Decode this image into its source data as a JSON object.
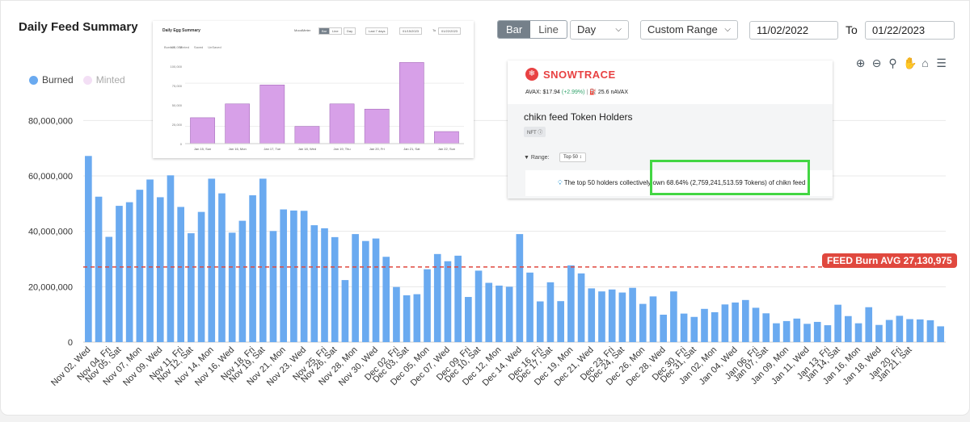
{
  "header": {
    "title": "Daily Feed Summary",
    "toggle_bar": "Bar",
    "toggle_line": "Line",
    "granularity": "Day",
    "range_mode": "Custom Range",
    "date_from": "11/02/2022",
    "to_label": "To",
    "date_to": "01/22/2023"
  },
  "legend": [
    {
      "name": "Burned",
      "color": "#6aaaf0"
    },
    {
      "name": "Minted",
      "color": "#f3dff5"
    }
  ],
  "toolbar_icons": [
    "zoom-in-icon",
    "zoom-out-icon",
    "magnify-icon",
    "pan-hand-icon",
    "home-icon",
    "menu-icon"
  ],
  "average_line": {
    "label": "FEED Burn AVG 27,130,975",
    "value": 27130975,
    "color": "#e0483e"
  },
  "chart_data": {
    "type": "bar",
    "title": "Daily Feed Summary",
    "ylim": [
      0,
      90000000
    ],
    "yticks": [
      "0",
      "20,000,000",
      "40,000,000",
      "60,000,000",
      "80,000,000"
    ],
    "ytick_values": [
      0,
      20000000,
      40000000,
      60000000,
      80000000
    ],
    "grid": true,
    "legend_position": "top-left",
    "bar_color": "#6aaaf0",
    "xtick_labels": [
      "Nov 02, Wed",
      "Nov 04, Fri",
      "Nov 05, Sat",
      "Nov 07, Mon",
      "Nov 09, Wed",
      "Nov 11, Fri",
      "Nov 12, Sat",
      "Nov 14, Mon",
      "Nov 16, Wed",
      "Nov 18, Fri",
      "Nov 19, Sat",
      "Nov 21, Mon",
      "Nov 23, Wed",
      "Nov 25, Fri",
      "Nov 26, Sat",
      "Nov 28, Mon",
      "Nov 30, Wed",
      "Dec 02, Fri",
      "Dec 03, Sat",
      "Dec 05, Mon",
      "Dec 07, Wed",
      "Dec 09, Fri",
      "Dec 10, Sat",
      "Dec 12, Mon",
      "Dec 14, Wed",
      "Dec 16, Fri",
      "Dec 17, Sat",
      "Dec 19, Mon",
      "Dec 21, Wed",
      "Dec 23, Fri",
      "Dec 24, Sat",
      "Dec 26, Mon",
      "Dec 28, Wed",
      "Dec 30, Fri",
      "Dec 31, Sat",
      "Jan 02, Mon",
      "Jan 04, Wed",
      "Jan 06, Fri",
      "Jan 07, Sat",
      "Jan 09, Mon",
      "Jan 11, Wed",
      "Jan 13, Fri",
      "Jan 14, Sat",
      "Jan 16, Mon",
      "Jan 18, Wed",
      "Jan 20, Fri",
      "Jan 21, Sat"
    ],
    "xtick_bar_index": [
      0,
      2,
      3,
      5,
      7,
      9,
      10,
      12,
      14,
      16,
      17,
      19,
      21,
      23,
      24,
      26,
      28,
      30,
      31,
      33,
      35,
      37,
      38,
      40,
      42,
      44,
      45,
      47,
      49,
      51,
      52,
      54,
      56,
      58,
      59,
      61,
      63,
      65,
      66,
      68,
      70,
      72,
      73,
      75,
      77,
      79,
      80
    ],
    "values": [
      67200000,
      52500000,
      38000000,
      49200000,
      50500000,
      55000000,
      58700000,
      52300000,
      60200000,
      48800000,
      39300000,
      47000000,
      59000000,
      53700000,
      39500000,
      43800000,
      53000000,
      59000000,
      40100000,
      47900000,
      47500000,
      47400000,
      42200000,
      41100000,
      37900000,
      22400000,
      39000000,
      36500000,
      37400000,
      30800000,
      19900000,
      16900000,
      17300000,
      26300000,
      31800000,
      29200000,
      31200000,
      16300000,
      25800000,
      21400000,
      20400000,
      20000000,
      39000000,
      25100000,
      14700000,
      21600000,
      14800000,
      27700000,
      24800000,
      19400000,
      18300000,
      19000000,
      17900000,
      19600000,
      13800000,
      16500000,
      9900000,
      18300000,
      10300000,
      9100000,
      12000000,
      10800000,
      13600000,
      14300000,
      15200000,
      12400000,
      10400000,
      6800000,
      7600000,
      8500000,
      6600000,
      7300000,
      6100000,
      13500000,
      9400000,
      6800000,
      12600000,
      6200000,
      8000000,
      9500000,
      8300000,
      8200000,
      7900000,
      5700000
    ]
  },
  "inset_egg": {
    "title": "Daily Egg Summary",
    "controls": [
      "MoodMeter",
      "Bar",
      "Line",
      "Day",
      "Last 7 days",
      "01/15/2023",
      "To",
      "01/22/2023"
    ],
    "legend": [
      "Burned",
      "Minted",
      "Saved",
      "UnSaved"
    ],
    "yticks": [
      "0",
      "25,000",
      "50,000",
      "75,000",
      "100,000",
      "125,000"
    ],
    "categories": [
      "Jan 15, Sun",
      "Jan 16, Mon",
      "Jan 17, Tue",
      "Jan 18, Wed",
      "Jan 19, Thu",
      "Jan 20, Fri",
      "Jan 21, Sat",
      "Jan 22, Sun"
    ],
    "values": [
      105000,
      113000,
      124000,
      100000,
      113000,
      110000,
      137000,
      97000
    ],
    "bar_color": "#d7a0e8"
  },
  "inset_snowtrace": {
    "brand": "SNOWTRACE",
    "price": "AVAX: $17.94",
    "change": "(+2.99%)",
    "gas": "25.6 nAVAX",
    "heading": "chikn feed Token Holders",
    "tag": "NFT",
    "range_label": "Range:",
    "range_value": "Top 50",
    "info": "The top 50 holders collectively own 68.64% (2,759,241,513.59 Tokens) of chikn feed"
  }
}
